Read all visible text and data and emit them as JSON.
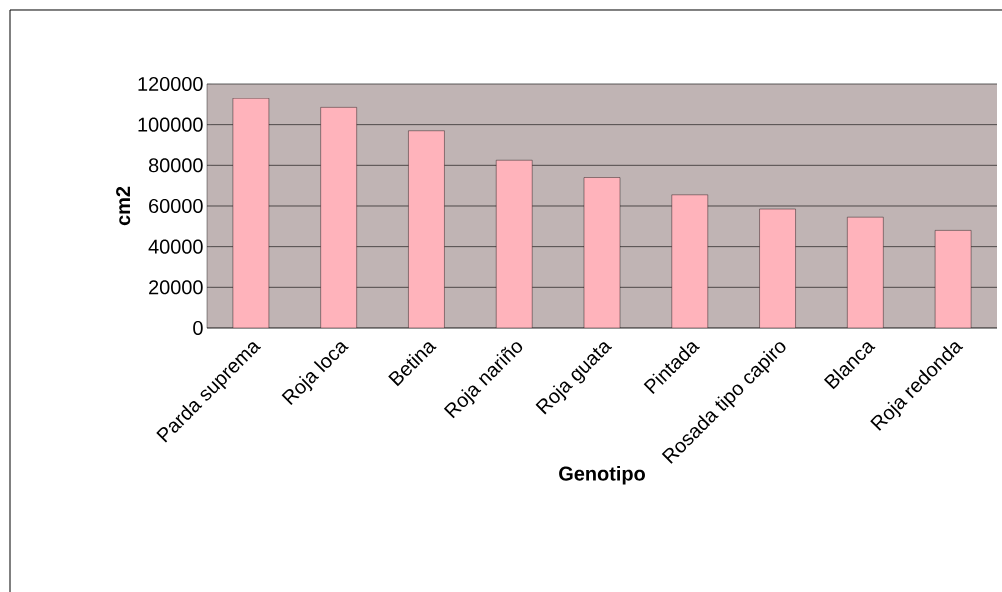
{
  "chart_data": {
    "type": "bar",
    "xlabel": "Genotipo",
    "ylabel": "cm2",
    "categories": [
      "Parda suprema",
      "Roja loca",
      "Betina",
      "Roja nariño",
      "Roja guata",
      "Pintada",
      "Rosada tipo capiro",
      "Blanca",
      "Roja redonda"
    ],
    "values": [
      113000,
      108500,
      97000,
      82500,
      74000,
      65500,
      58500,
      54500,
      48000
    ],
    "color": "#ffb3bb",
    "ylim": [
      0,
      120000
    ],
    "yticks": [
      0,
      20000,
      40000,
      60000,
      80000,
      100000,
      120000
    ],
    "grid": "y"
  }
}
